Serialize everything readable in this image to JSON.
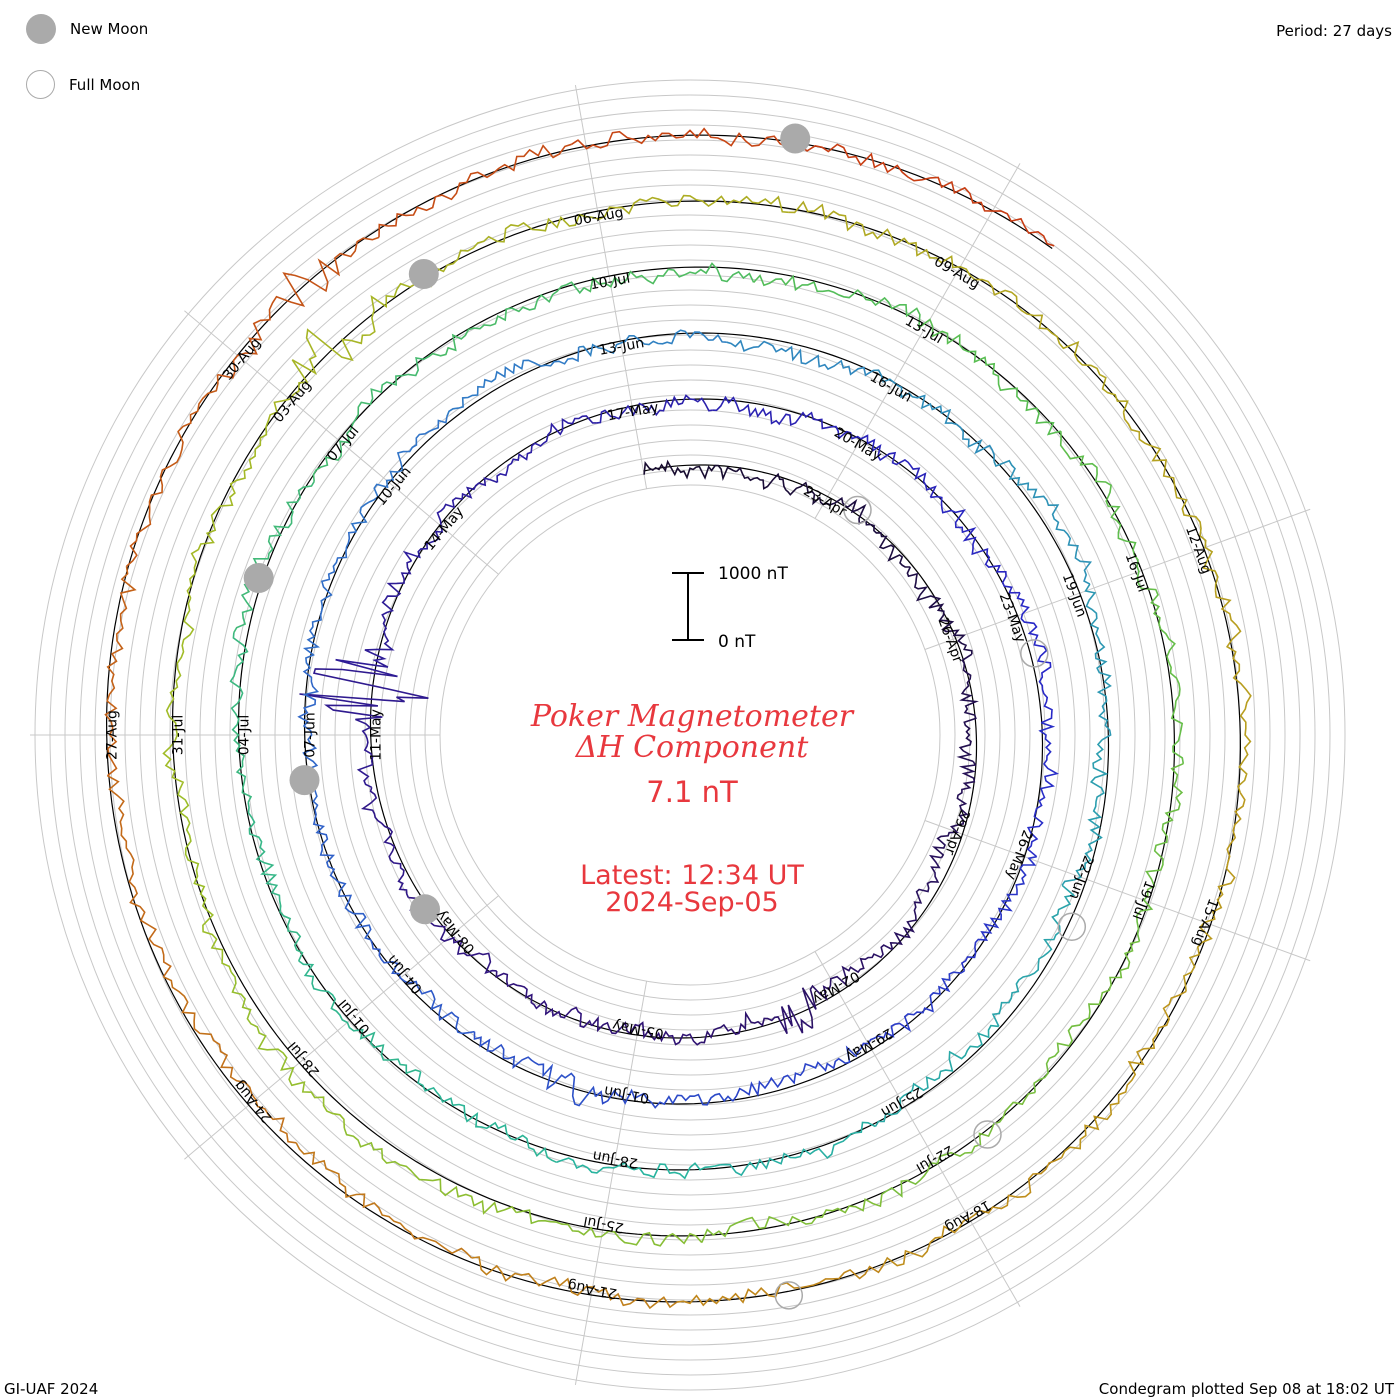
{
  "legend": {
    "new_moon_label": "New Moon",
    "full_moon_label": "Full Moon",
    "new_moon_color": "#aaaaaa",
    "full_moon_color": "#aaaaaa"
  },
  "period_label": "Period: 27 days",
  "footer": {
    "credit": "GI-UAF 2024",
    "plotted": "Condegram plotted Sep 08 at 18:02 UT"
  },
  "chart_data": {
    "type": "line",
    "chart_style": "spiral condegram",
    "title_line1": "Poker Magnetometer",
    "title_line2": "ΔH Component",
    "current_value": "7.1 nT",
    "latest_line1": "Latest: 12:34 UT",
    "latest_line2": "2024-Sep-05",
    "period_days": 27,
    "scale_bar": {
      "top_label": "1000 nT",
      "bottom_label": "0 nT",
      "top_value": 1000,
      "bottom_value": 0
    },
    "title_color": "#e8383e",
    "start_date": "2024-04-20",
    "end_date": "2024-09-05",
    "date_labels": [
      "23-Apr",
      "26-Apr",
      "29-Apr",
      "02-May",
      "05-May",
      "08-May",
      "11-May",
      "14-May",
      "17-May",
      "20-May",
      "23-May",
      "26-May",
      "29-May",
      "01-Jun",
      "04-Jun",
      "07-Jun",
      "10-Jun",
      "13-Jun",
      "16-Jun",
      "19-Jun",
      "22-Jun",
      "25-Jun",
      "28-Jun",
      "01-Jul",
      "04-Jul",
      "07-Jul",
      "10-Jul",
      "13-Jul",
      "16-Jul",
      "19-Jul",
      "22-Jul",
      "25-Jul",
      "28-Jul",
      "31-Jul",
      "03-Aug",
      "06-Aug",
      "09-Aug",
      "12-Aug",
      "15-Aug",
      "18-Aug",
      "21-Aug",
      "24-Aug",
      "27-Aug",
      "30-Aug"
    ],
    "new_moons": [
      "2024-05-08",
      "2024-06-06",
      "2024-07-05",
      "2024-08-04",
      "2024-09-03"
    ],
    "full_moons": [
      "2024-04-23",
      "2024-05-23",
      "2024-06-22",
      "2024-07-21",
      "2024-08-19"
    ],
    "disturbances": [
      {
        "date": "2024-05-11",
        "peak_nT": 1500
      },
      {
        "date": "2024-05-02",
        "peak_nT": 500
      },
      {
        "date": "2024-06-01",
        "peak_nT": 300
      },
      {
        "date": "2024-08-03",
        "peak_nT": 600
      },
      {
        "date": "2024-08-30",
        "peak_nT": 400
      }
    ],
    "grid": true
  }
}
